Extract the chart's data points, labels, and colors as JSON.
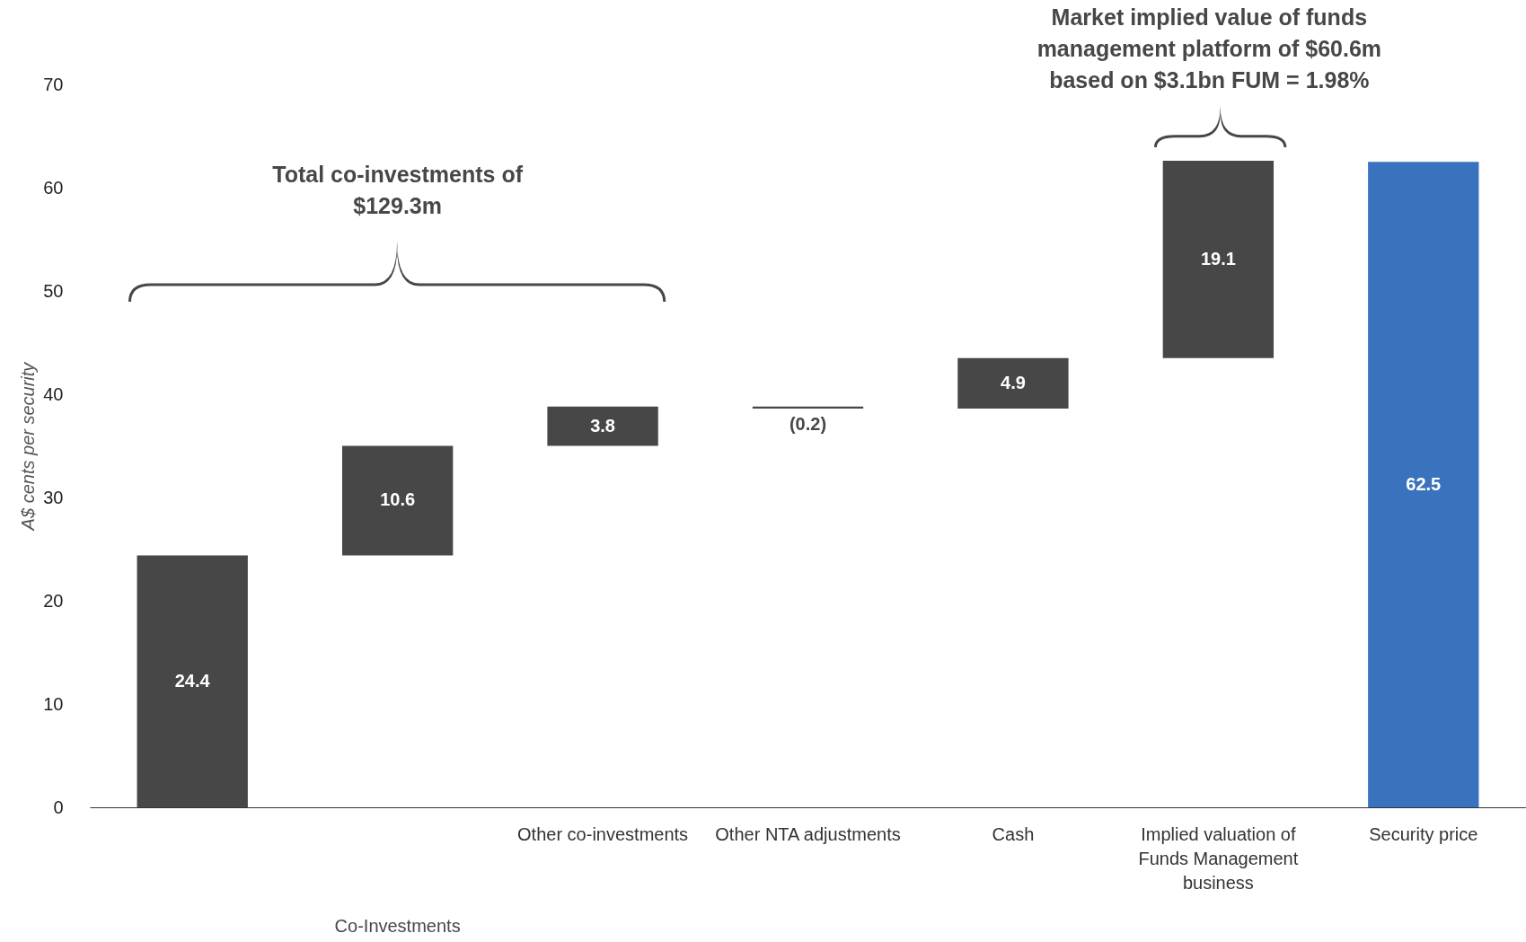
{
  "chart_data": {
    "type": "bar",
    "ylabel": "A$ cents per security",
    "categories": [
      null,
      null,
      "Other co-investments",
      "Other NTA adjustments",
      "Cash",
      "Implied valuation of Funds Management business",
      "Security price"
    ],
    "values": [
      24.4,
      10.6,
      3.8,
      -0.2,
      4.9,
      19.1,
      62.5
    ],
    "base": [
      0,
      24.4,
      35.0,
      38.8,
      38.6,
      43.5,
      0
    ],
    "colors": [
      "#474747",
      "#474747",
      "#474747",
      "#474747",
      "#474747",
      "#474747",
      "#3a73bd"
    ],
    "value_labels": [
      "24.4",
      "10.6",
      "3.8",
      "(0.2)",
      "4.9",
      "19.1",
      "62.5"
    ],
    "ylim": [
      0,
      70
    ],
    "yticks": [
      0,
      10,
      20,
      30,
      40,
      50,
      60,
      70
    ],
    "grid": false,
    "annotations": [
      "Total co-investments of $129.3m",
      "Market implied value of funds management platform of $60.6m based on $3.1bn FUM = 1.98%",
      "Co-Investments"
    ]
  }
}
